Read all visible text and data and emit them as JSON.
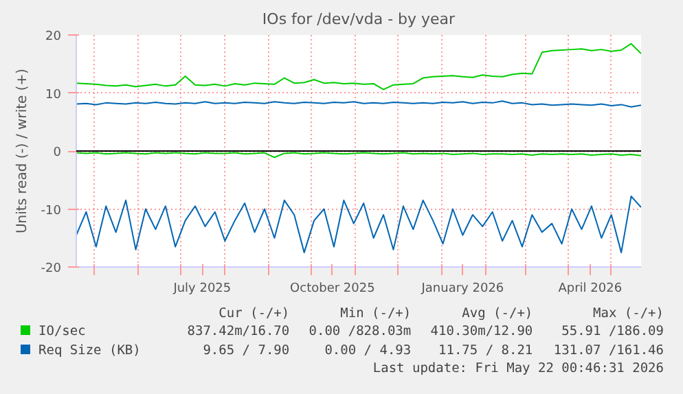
{
  "chart_data": {
    "type": "line",
    "title": "IOs for /dev/vda - by year",
    "ylabel": "Units read (-) / write (+)",
    "x": [
      "2025-04-18",
      "2025-04-25",
      "2025-05-02",
      "2025-05-09",
      "2025-05-16",
      "2025-05-23",
      "2025-05-30",
      "2025-06-06",
      "2025-06-13",
      "2025-06-20",
      "2025-06-27",
      "2025-07-04",
      "2025-07-11",
      "2025-07-18",
      "2025-07-25",
      "2025-08-01",
      "2025-08-08",
      "2025-08-15",
      "2025-08-22",
      "2025-08-29",
      "2025-09-05",
      "2025-09-12",
      "2025-09-19",
      "2025-09-26",
      "2025-10-03",
      "2025-10-10",
      "2025-10-17",
      "2025-10-24",
      "2025-10-31",
      "2025-11-07",
      "2025-11-14",
      "2025-11-21",
      "2025-11-28",
      "2025-12-05",
      "2025-12-12",
      "2025-12-19",
      "2025-12-26",
      "2026-01-02",
      "2026-01-09",
      "2026-01-16",
      "2026-01-23",
      "2026-01-30",
      "2026-02-06",
      "2026-02-13",
      "2026-02-20",
      "2026-02-27",
      "2026-03-06",
      "2026-03-13",
      "2026-03-20",
      "2026-03-27",
      "2026-04-03",
      "2026-04-10",
      "2026-04-17",
      "2026-04-24",
      "2026-05-01",
      "2026-05-08",
      "2026-05-15",
      "2026-05-22"
    ],
    "series": [
      {
        "name": "IO/sec",
        "color": "#00cc00",
        "values": [
          11.7,
          11.6,
          11.5,
          11.3,
          11.2,
          11.4,
          11.1,
          11.3,
          11.5,
          11.2,
          11.4,
          12.9,
          11.4,
          11.3,
          11.5,
          11.2,
          11.6,
          11.4,
          11.7,
          11.6,
          11.5,
          12.6,
          11.7,
          11.8,
          12.3,
          11.7,
          11.8,
          11.6,
          11.7,
          11.5,
          11.6,
          10.6,
          11.4,
          11.5,
          11.6,
          12.6,
          12.8,
          12.9,
          13.0,
          12.8,
          12.7,
          13.1,
          12.9,
          12.8,
          13.2,
          13.4,
          13.3,
          17.0,
          17.3,
          17.4,
          17.5,
          17.6,
          17.3,
          17.5,
          17.2,
          17.4,
          18.5,
          16.8
        ]
      },
      {
        "color": "#00cc00",
        "values": [
          -0.3,
          -0.4,
          -0.3,
          -0.5,
          -0.4,
          -0.3,
          -0.4,
          -0.5,
          -0.3,
          -0.4,
          -0.3,
          -0.4,
          -0.5,
          -0.3,
          -0.4,
          -0.4,
          -0.3,
          -0.5,
          -0.4,
          -0.3,
          -1.1,
          -0.4,
          -0.3,
          -0.5,
          -0.4,
          -0.3,
          -0.4,
          -0.5,
          -0.4,
          -0.3,
          -0.4,
          -0.5,
          -0.4,
          -0.3,
          -0.5,
          -0.4,
          -0.5,
          -0.4,
          -0.6,
          -0.5,
          -0.4,
          -0.6,
          -0.5,
          -0.5,
          -0.6,
          -0.5,
          -0.7,
          -0.5,
          -0.6,
          -0.5,
          -0.6,
          -0.5,
          -0.7,
          -0.6,
          -0.5,
          -0.7,
          -0.6,
          -0.8
        ]
      },
      {
        "name": "Req Size (KB)",
        "color": "#0066b3",
        "values": [
          8.1,
          8.2,
          8.0,
          8.3,
          8.2,
          8.1,
          8.3,
          8.2,
          8.4,
          8.2,
          8.1,
          8.3,
          8.2,
          8.5,
          8.2,
          8.3,
          8.2,
          8.4,
          8.3,
          8.2,
          8.5,
          8.3,
          8.2,
          8.4,
          8.3,
          8.2,
          8.4,
          8.3,
          8.5,
          8.2,
          8.3,
          8.2,
          8.4,
          8.3,
          8.2,
          8.3,
          8.2,
          8.4,
          8.3,
          8.5,
          8.2,
          8.4,
          8.3,
          8.6,
          8.2,
          8.3,
          8.0,
          8.1,
          7.9,
          8.0,
          8.1,
          8.0,
          7.9,
          8.1,
          7.8,
          8.0,
          7.6,
          7.9
        ]
      },
      {
        "color": "#0066b3",
        "values": [
          -14.5,
          -10.5,
          -16.5,
          -9.5,
          -14,
          -8.5,
          -17,
          -10,
          -13.5,
          -9.5,
          -16.5,
          -12,
          -9.5,
          -13,
          -10.5,
          -15.5,
          -12,
          -9,
          -14,
          -10,
          -15,
          -8.5,
          -11,
          -17.5,
          -12,
          -10,
          -16.5,
          -8.5,
          -12.5,
          -9,
          -15,
          -11,
          -17,
          -9.5,
          -13.5,
          -8.5,
          -12,
          -16,
          -10,
          -14.5,
          -11,
          -13,
          -10.5,
          -15.5,
          -12,
          -16.5,
          -11,
          -14,
          -12.5,
          -16,
          -10,
          -13.5,
          -9.5,
          -15,
          -11,
          -17.5,
          -7.8,
          -9.7
        ]
      }
    ],
    "xlim": [
      "2025-04-18",
      "2026-05-22"
    ],
    "xticks": [
      {
        "value": "2025-05-01",
        "label": null
      },
      {
        "value": "2025-06-01",
        "label": null
      },
      {
        "value": "2025-07-01",
        "label": null
      },
      {
        "value": "2025-07-16",
        "label": "July 2025"
      },
      {
        "value": "2025-08-01",
        "label": null
      },
      {
        "value": "2025-09-01",
        "label": null
      },
      {
        "value": "2025-10-01",
        "label": null
      },
      {
        "value": "2025-10-16",
        "label": "October 2025"
      },
      {
        "value": "2025-11-01",
        "label": null
      },
      {
        "value": "2025-12-01",
        "label": null
      },
      {
        "value": "2026-01-01",
        "label": null
      },
      {
        "value": "2026-01-16",
        "label": "January 2026"
      },
      {
        "value": "2026-02-01",
        "label": null
      },
      {
        "value": "2026-03-01",
        "label": null
      },
      {
        "value": "2026-04-01",
        "label": null
      },
      {
        "value": "2026-04-16",
        "label": "April 2026"
      },
      {
        "value": "2026-05-01",
        "label": null
      }
    ],
    "ylim": [
      -20,
      20
    ],
    "yticks": [
      -20,
      -10,
      0,
      10,
      20
    ],
    "grid": true,
    "legend": "bottom",
    "ref_lines": [
      {
        "axis": "y",
        "value": 0,
        "color": "#000000"
      }
    ],
    "annotations": [
      "Cur (-/+)",
      "Min (-/+)",
      "Avg (-/+)",
      "Max (-/+)",
      "837.42m/16.70",
      "0.00 /828.03m",
      "410.30m/12.90",
      "55.91 /186.09",
      "9.65 / 7.90",
      "0.00 / 4.93",
      "11.75 / 8.21",
      "131.07 /161.46",
      "Last update: Fri May 22 00:46:31 2026"
    ]
  }
}
